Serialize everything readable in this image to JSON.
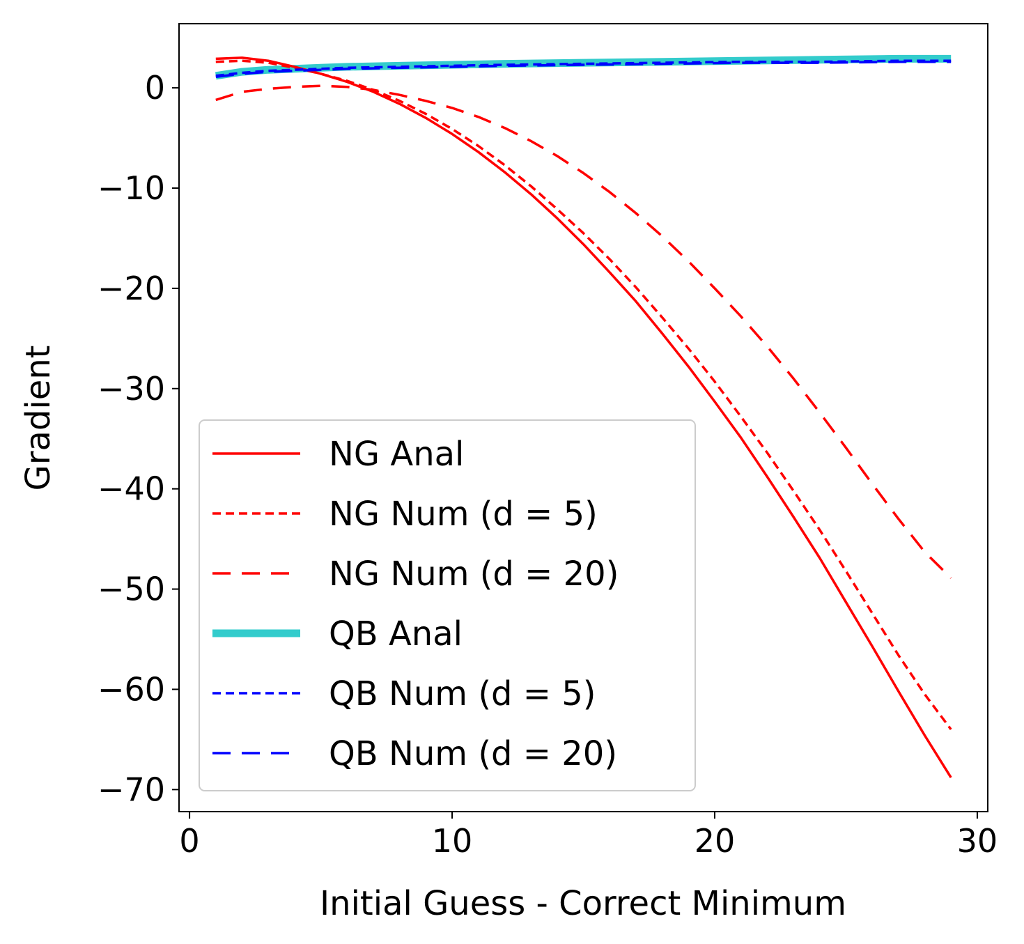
{
  "chart_data": {
    "type": "line",
    "title": "",
    "xlabel": "Initial Guess - Correct Minimum",
    "ylabel": "Gradient",
    "xlim": [
      -0.4,
      30.4
    ],
    "ylim": [
      -72.2,
      6.4
    ],
    "xticks": [
      0,
      10,
      20,
      30
    ],
    "yticks": [
      0,
      -10,
      -20,
      -30,
      -40,
      -50,
      -60,
      -70
    ],
    "xtick_labels": [
      "0",
      "10",
      "20",
      "30"
    ],
    "ytick_labels": [
      "0",
      "−10",
      "−20",
      "−30",
      "−40",
      "−50",
      "−60",
      "−70"
    ],
    "grid": false,
    "legend_position": "lower-left",
    "series": [
      {
        "name": "NG Anal",
        "color": "#ff0000",
        "style": "solid",
        "width": "normal",
        "points": [
          [
            1,
            2.9
          ],
          [
            2,
            3.0
          ],
          [
            3,
            2.7
          ],
          [
            4,
            2.1
          ],
          [
            5,
            1.4
          ],
          [
            6,
            0.6
          ],
          [
            7,
            -0.4
          ],
          [
            8,
            -1.6
          ],
          [
            9,
            -3.0
          ],
          [
            10,
            -4.6
          ],
          [
            11,
            -6.4
          ],
          [
            12,
            -8.4
          ],
          [
            13,
            -10.6
          ],
          [
            14,
            -13.0
          ],
          [
            15,
            -15.6
          ],
          [
            16,
            -18.4
          ],
          [
            17,
            -21.3
          ],
          [
            18,
            -24.5
          ],
          [
            19,
            -27.8
          ],
          [
            20,
            -31.3
          ],
          [
            21,
            -34.9
          ],
          [
            22,
            -38.8
          ],
          [
            23,
            -42.8
          ],
          [
            24,
            -46.9
          ],
          [
            25,
            -51.3
          ],
          [
            26,
            -55.7
          ],
          [
            27,
            -60.2
          ],
          [
            28,
            -64.6
          ],
          [
            29,
            -68.8
          ]
        ]
      },
      {
        "name": "NG Num (d = 5)",
        "color": "#ff0000",
        "style": "dotted",
        "width": "normal",
        "points": [
          [
            1,
            2.6
          ],
          [
            2,
            2.7
          ],
          [
            3,
            2.5
          ],
          [
            4,
            2.0
          ],
          [
            5,
            1.4
          ],
          [
            6,
            0.7
          ],
          [
            7,
            -0.2
          ],
          [
            8,
            -1.3
          ],
          [
            9,
            -2.6
          ],
          [
            10,
            -4.1
          ],
          [
            11,
            -5.8
          ],
          [
            12,
            -7.7
          ],
          [
            13,
            -9.8
          ],
          [
            14,
            -12.1
          ],
          [
            15,
            -14.5
          ],
          [
            16,
            -17.1
          ],
          [
            17,
            -19.9
          ],
          [
            18,
            -22.9
          ],
          [
            19,
            -26.0
          ],
          [
            20,
            -29.3
          ],
          [
            21,
            -32.8
          ],
          [
            22,
            -36.4
          ],
          [
            23,
            -40.2
          ],
          [
            24,
            -44.1
          ],
          [
            25,
            -48.2
          ],
          [
            26,
            -52.4
          ],
          [
            27,
            -56.6
          ],
          [
            28,
            -60.5
          ],
          [
            29,
            -64.0
          ]
        ]
      },
      {
        "name": "NG Num (d = 20)",
        "color": "#ff0000",
        "style": "dashed",
        "width": "normal",
        "points": [
          [
            1,
            -1.2
          ],
          [
            2,
            -0.4
          ],
          [
            3,
            -0.1
          ],
          [
            4,
            0.1
          ],
          [
            5,
            0.2
          ],
          [
            6,
            0.1
          ],
          [
            7,
            -0.2
          ],
          [
            8,
            -0.7
          ],
          [
            9,
            -1.3
          ],
          [
            10,
            -2.0
          ],
          [
            11,
            -2.9
          ],
          [
            12,
            -4.0
          ],
          [
            13,
            -5.3
          ],
          [
            14,
            -6.8
          ],
          [
            15,
            -8.5
          ],
          [
            16,
            -10.4
          ],
          [
            17,
            -12.5
          ],
          [
            18,
            -14.8
          ],
          [
            19,
            -17.3
          ],
          [
            20,
            -20.0
          ],
          [
            21,
            -22.8
          ],
          [
            22,
            -25.8
          ],
          [
            23,
            -29.0
          ],
          [
            24,
            -32.4
          ],
          [
            25,
            -35.9
          ],
          [
            26,
            -39.5
          ],
          [
            27,
            -43.0
          ],
          [
            28,
            -46.3
          ],
          [
            29,
            -48.9
          ]
        ]
      },
      {
        "name": "QB Anal",
        "color": "#33cccc",
        "style": "solid",
        "width": "thick",
        "points": [
          [
            1,
            1.2
          ],
          [
            2,
            1.6
          ],
          [
            3,
            1.8
          ],
          [
            4,
            1.9
          ],
          [
            5,
            2.0
          ],
          [
            6,
            2.1
          ],
          [
            8,
            2.2
          ],
          [
            10,
            2.3
          ],
          [
            12,
            2.4
          ],
          [
            15,
            2.5
          ],
          [
            18,
            2.6
          ],
          [
            21,
            2.7
          ],
          [
            24,
            2.8
          ],
          [
            27,
            2.9
          ],
          [
            29,
            2.9
          ]
        ]
      },
      {
        "name": "QB Num (d = 5)",
        "color": "#0000ff",
        "style": "dotted",
        "width": "normal",
        "points": [
          [
            1,
            1.2
          ],
          [
            2,
            1.5
          ],
          [
            3,
            1.7
          ],
          [
            4,
            1.8
          ],
          [
            5,
            1.9
          ],
          [
            6,
            2.0
          ],
          [
            8,
            2.1
          ],
          [
            10,
            2.2
          ],
          [
            12,
            2.3
          ],
          [
            15,
            2.4
          ],
          [
            18,
            2.5
          ],
          [
            21,
            2.6
          ],
          [
            24,
            2.6
          ],
          [
            27,
            2.7
          ],
          [
            29,
            2.7
          ]
        ]
      },
      {
        "name": "QB Num (d = 20)",
        "color": "#0000ff",
        "style": "dashed",
        "width": "normal",
        "points": [
          [
            1,
            1.1
          ],
          [
            2,
            1.4
          ],
          [
            3,
            1.6
          ],
          [
            4,
            1.7
          ],
          [
            5,
            1.8
          ],
          [
            6,
            1.9
          ],
          [
            8,
            2.0
          ],
          [
            10,
            2.1
          ],
          [
            12,
            2.2
          ],
          [
            15,
            2.3
          ],
          [
            18,
            2.4
          ],
          [
            21,
            2.5
          ],
          [
            24,
            2.5
          ],
          [
            27,
            2.6
          ],
          [
            29,
            2.6
          ]
        ]
      }
    ]
  }
}
